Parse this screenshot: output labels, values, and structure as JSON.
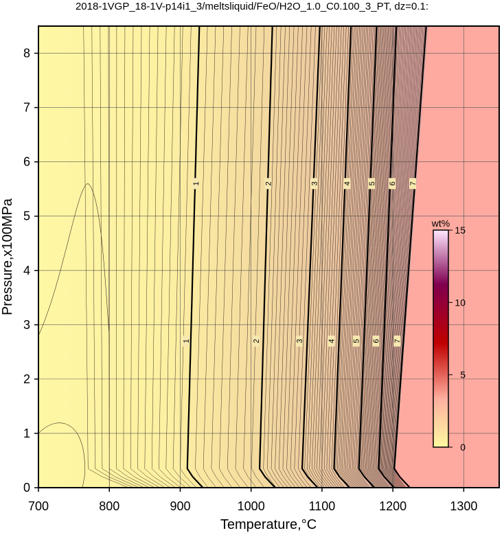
{
  "chart_data": {
    "type": "heatmap",
    "title": "2018-1VGP_18-1V-p14i1_3/meltsliquid/FeO/H2O_1.0_C0.100_3_PT, dz=0.1:",
    "xlabel": "Temperature,°C",
    "ylabel": "Pressure,x100MPa",
    "xlim": [
      700,
      1350
    ],
    "ylim": [
      0,
      8.5
    ],
    "x_ticks": [
      "700",
      "800",
      "900",
      "1000",
      "1100",
      "1200",
      "1300"
    ],
    "y_ticks": [
      "0",
      "1",
      "2",
      "3",
      "4",
      "5",
      "6",
      "7",
      "8"
    ],
    "grid": true,
    "colorbar": {
      "label": "wt%",
      "range": [
        0,
        15
      ],
      "ticks": [
        "0",
        "5",
        "10",
        "15"
      ],
      "colors": [
        "#fffaa0",
        "#ffb0a0",
        "#c00000",
        "#800050",
        "#ffe8ff"
      ]
    },
    "no_melt_color": "#ffaaa0",
    "major_contours": [
      {
        "label": "1",
        "T_low": 910,
        "T_high": 927,
        "label_positions": [
          [
            908,
            2.7
          ],
          [
            922,
            5.6
          ]
        ]
      },
      {
        "label": "2",
        "T_low": 1012,
        "T_high": 1030,
        "label_positions": [
          [
            1007,
            2.7
          ],
          [
            1024,
            5.6
          ]
        ]
      },
      {
        "label": "3",
        "T_low": 1072,
        "T_high": 1097,
        "label_positions": [
          [
            1068,
            2.7
          ],
          [
            1089,
            5.6
          ]
        ]
      },
      {
        "label": "4",
        "T_low": 1117,
        "T_high": 1141,
        "label_positions": [
          [
            1113,
            2.7
          ],
          [
            1135,
            5.6
          ]
        ]
      },
      {
        "label": "5",
        "T_low": 1152,
        "T_high": 1177,
        "label_positions": [
          [
            1148,
            2.7
          ],
          [
            1170,
            5.6
          ]
        ]
      },
      {
        "label": "6",
        "T_low": 1180,
        "T_high": 1205,
        "label_positions": [
          [
            1176,
            2.7
          ],
          [
            1199,
            5.6
          ]
        ]
      },
      {
        "label": "7",
        "T_low": 1202,
        "T_high": 1247,
        "label_positions": [
          [
            1206,
            2.7
          ],
          [
            1228,
            5.6
          ]
        ]
      }
    ],
    "solidus_T": [
      1202,
      1250
    ]
  }
}
